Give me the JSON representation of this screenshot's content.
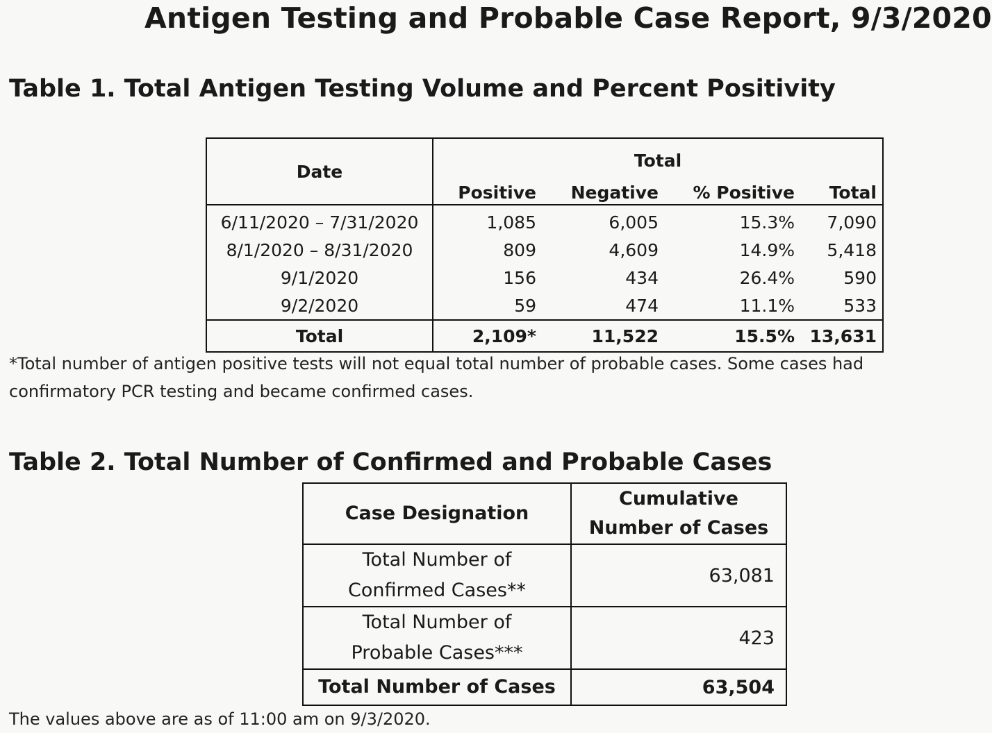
{
  "report": {
    "title": "Antigen Testing and Probable Case Report, 9/3/2020"
  },
  "table1": {
    "title": "Table 1. Total Antigen Testing Volume and Percent Positivity",
    "header_date": "Date",
    "header_group": "Total",
    "columns": [
      "Positive",
      "Negative",
      "% Positive",
      "Total"
    ],
    "rows": [
      {
        "date": "6/11/2020 – 7/31/2020",
        "positive": "1,085",
        "negative": "6,005",
        "pct": "15.3%",
        "total": "7,090"
      },
      {
        "date": "8/1/2020 – 8/31/2020",
        "positive": "809",
        "negative": "4,609",
        "pct": "14.9%",
        "total": "5,418"
      },
      {
        "date": "9/1/2020",
        "positive": "156",
        "negative": "434",
        "pct": "26.4%",
        "total": "590"
      },
      {
        "date": "9/2/2020",
        "positive": "59",
        "negative": "474",
        "pct": "11.1%",
        "total": "533"
      }
    ],
    "total_row": {
      "label": "Total",
      "positive": "2,109*",
      "negative": "11,522",
      "pct": "15.5%",
      "total": "13,631"
    },
    "footnote": "*Total number of antigen positive tests will not equal total number of probable cases. Some cases had confirmatory PCR testing and became confirmed cases."
  },
  "table2": {
    "title": "Table 2. Total Number of Confirmed and Probable Cases",
    "header_designation": "Case Designation",
    "header_cumulative_1": "Cumulative",
    "header_cumulative_2": "Number of Cases",
    "rows": [
      {
        "label_1": "Total Number of",
        "label_2": "Confirmed Cases**",
        "value": "63,081"
      },
      {
        "label_1": "Total Number of",
        "label_2": "Probable Cases***",
        "value": "423"
      }
    ],
    "total_row": {
      "label": "Total Number of Cases",
      "value": "63,504"
    }
  },
  "as_of_note": "The values above are as of 11:00 am on 9/3/2020."
}
